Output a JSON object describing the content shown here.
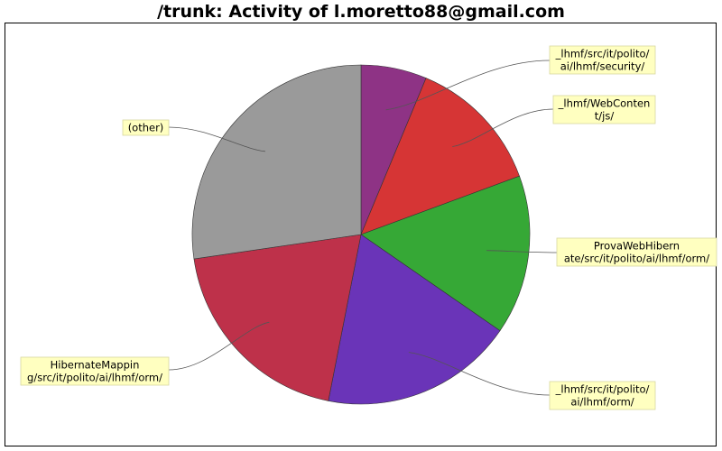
{
  "chart_data": {
    "type": "pie",
    "title": "/trunk: Activity of l.moretto88@gmail.com",
    "slices": [
      {
        "label": "_lhmf/src/it/polito/ai/lhmf/security/",
        "label_lines": [
          "_lhmf/src/it/polito/",
          "ai/lhmf/security/"
        ],
        "value": 6.3,
        "color": "#8e3385"
      },
      {
        "label": "_lhmf/WebContent/js/",
        "label_lines": [
          "_lhmf/WebConten",
          "t/js/"
        ],
        "value": 13.1,
        "color": "#d63535"
      },
      {
        "label": "ProvaWebHibernate/src/it/polito/ai/lhmf/orm/",
        "label_lines": [
          "ProvaWebHibern",
          "ate/src/it/polito/ai/lhmf/orm/"
        ],
        "value": 15.2,
        "color": "#36a836"
      },
      {
        "label": "_lhmf/src/it/polito/ai/lhmf/orm/",
        "label_lines": [
          "_lhmf/src/it/polito/",
          "ai/lhmf/orm/"
        ],
        "value": 18.5,
        "color": "#6a34b8"
      },
      {
        "label": "HibernateMapping/src/it/polito/ai/lhmf/orm/",
        "label_lines": [
          "HibernateMappin",
          "g/src/it/polito/ai/lhmf/orm/"
        ],
        "value": 19.6,
        "color": "#be314a"
      },
      {
        "label": "(other)",
        "label_lines": [
          "(other)"
        ],
        "value": 27.3,
        "color": "#9a9a9a"
      }
    ],
    "start_angle_deg": 0,
    "direction": "clockwise",
    "legend": "callout labels",
    "label_background": "#ffffc0"
  }
}
